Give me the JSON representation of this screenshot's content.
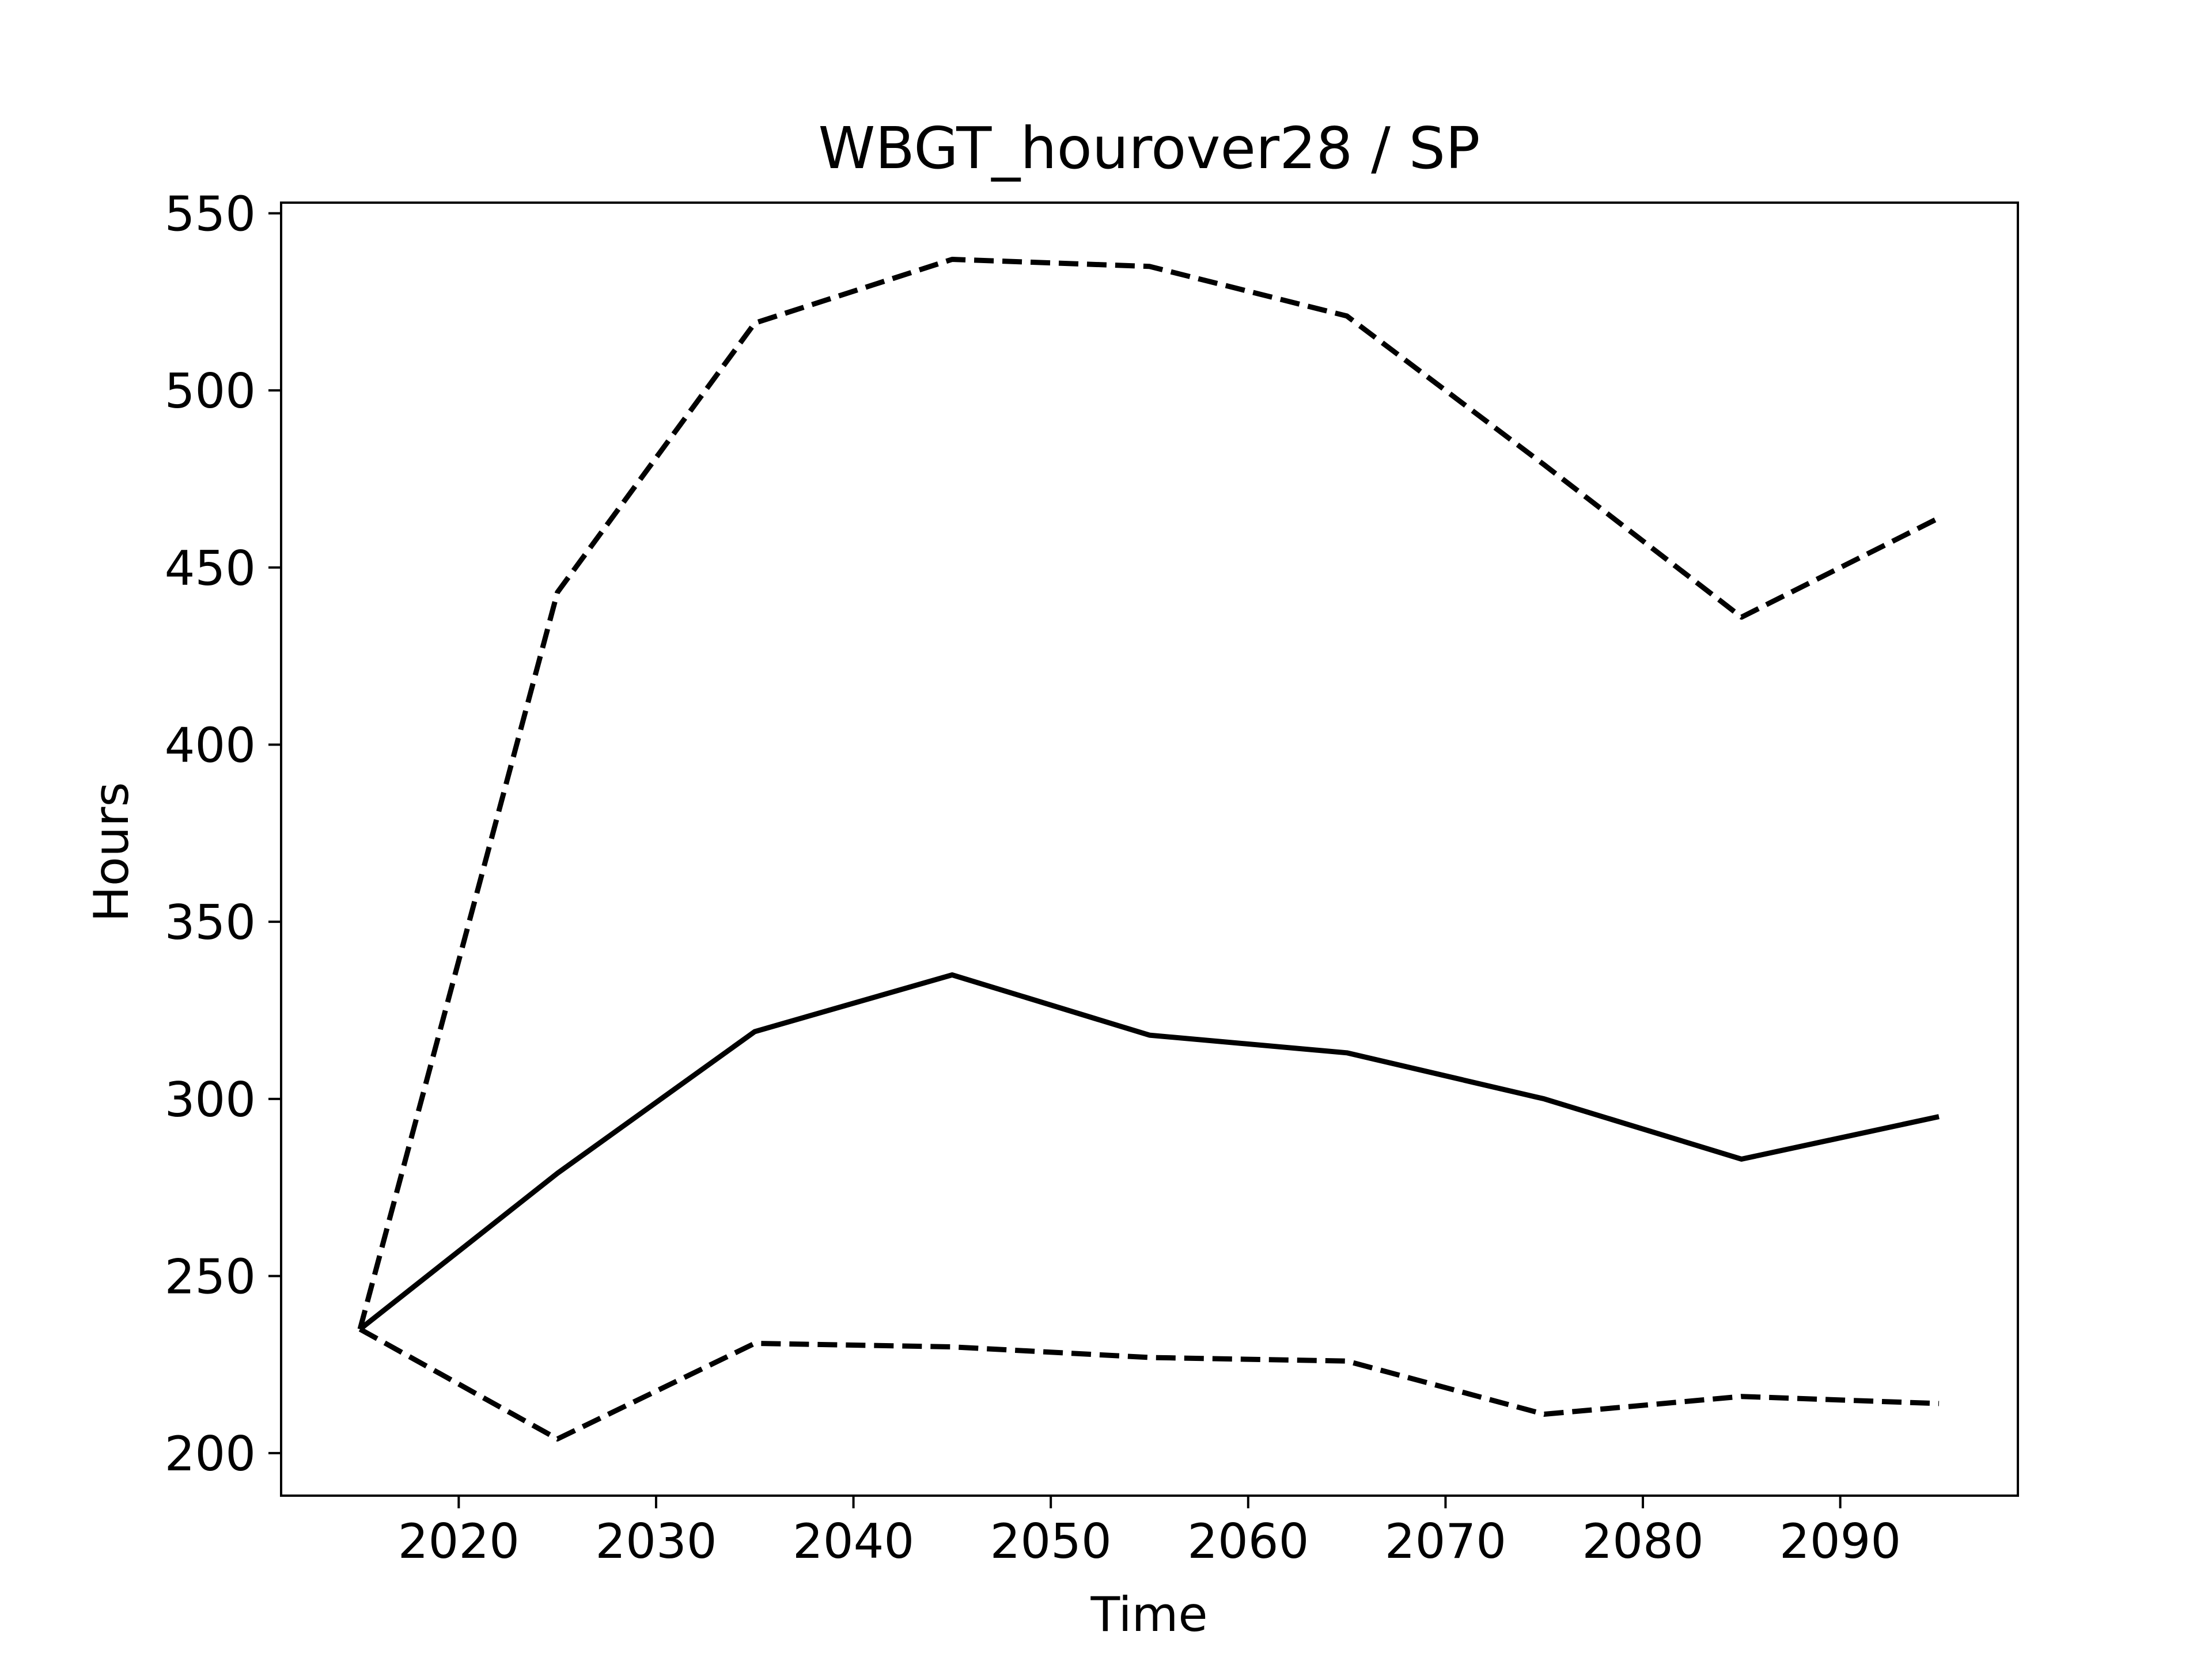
{
  "chart_data": {
    "type": "line",
    "title": "WBGT_hourover28 / SP",
    "xlabel": "Time",
    "ylabel": "Hours",
    "xlim": [
      2011,
      2099
    ],
    "ylim": [
      188,
      553
    ],
    "xticks": [
      2020,
      2030,
      2040,
      2050,
      2060,
      2070,
      2080,
      2090
    ],
    "xtick_labels": [
      "2020",
      "2030",
      "2040",
      "2050",
      "2060",
      "2070",
      "2080",
      "2090"
    ],
    "yticks": [
      200,
      250,
      300,
      350,
      400,
      450,
      500,
      550
    ],
    "ytick_labels": [
      "200",
      "250",
      "300",
      "350",
      "400",
      "450",
      "500",
      "550"
    ],
    "grid": false,
    "x": [
      2015,
      2025,
      2035,
      2045,
      2055,
      2065,
      2075,
      2085,
      2095
    ],
    "series": [
      {
        "style": "solid",
        "color": "#000000",
        "values": [
          235,
          279,
          319,
          335,
          318,
          313,
          300,
          283,
          295
        ]
      },
      {
        "style": "dashed",
        "color": "#000000",
        "values": [
          235,
          443,
          519,
          537,
          535,
          521,
          479,
          436,
          464
        ]
      },
      {
        "style": "dashed",
        "color": "#000000",
        "values": [
          235,
          204,
          231,
          230,
          227,
          226,
          211,
          216,
          214
        ]
      }
    ]
  }
}
